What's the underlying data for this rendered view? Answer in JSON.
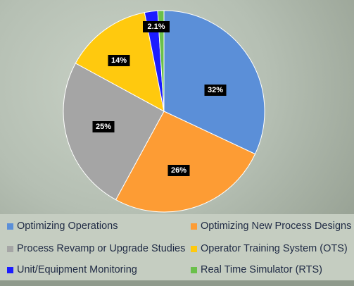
{
  "chart_data": {
    "type": "pie",
    "categories": [
      "Optimizing Operations",
      "Optimizing New Process Designs",
      "Process Revamp or Upgrade Studies",
      "Operator Training  System (OTS)",
      "Unit/Equipment Monitoring",
      "Real Time Simulator (RTS)"
    ],
    "values": [
      32,
      26,
      25,
      14,
      2.1,
      1
    ],
    "data_labels": [
      "32%",
      "26%",
      "25%",
      "14%",
      "2.1%",
      ""
    ],
    "colors": [
      "#5b8fd8",
      "#fd9c34",
      "#a5a5a5",
      "#ffc90e",
      "#1c1cff",
      "#6ac04a"
    ],
    "legend_position": "bottom"
  }
}
